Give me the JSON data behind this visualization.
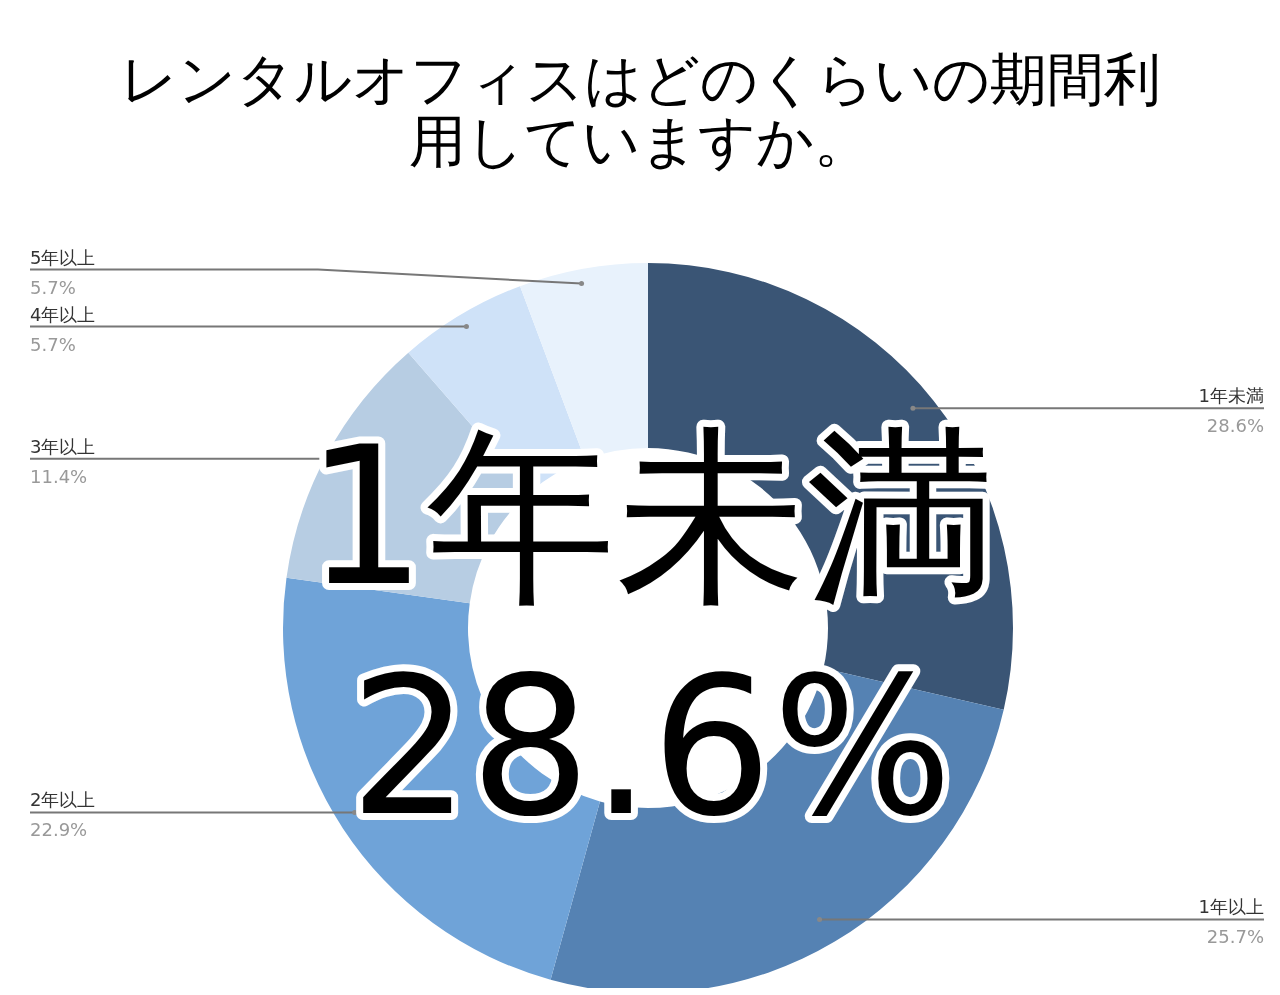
{
  "chart_data": {
    "type": "donut",
    "title": "レンタルオフィスはどのくらいの期間利用していますか。",
    "categories": [
      "1年未満",
      "1年以上",
      "2年以上",
      "3年以上",
      "4年以上",
      "5年以上"
    ],
    "values": [
      28.6,
      25.7,
      22.9,
      11.4,
      5.7,
      5.7
    ],
    "colors": [
      "#3a5575",
      "#5582b3",
      "#6fa3d8",
      "#b7cde3",
      "#cfe2f8",
      "#e8f2fc"
    ],
    "value_labels": [
      "28.6%",
      "25.7%",
      "22.9%",
      "11.4%",
      "5.7%",
      "5.7%"
    ],
    "annotations": [
      "1年未満",
      "28.6%"
    ]
  }
}
